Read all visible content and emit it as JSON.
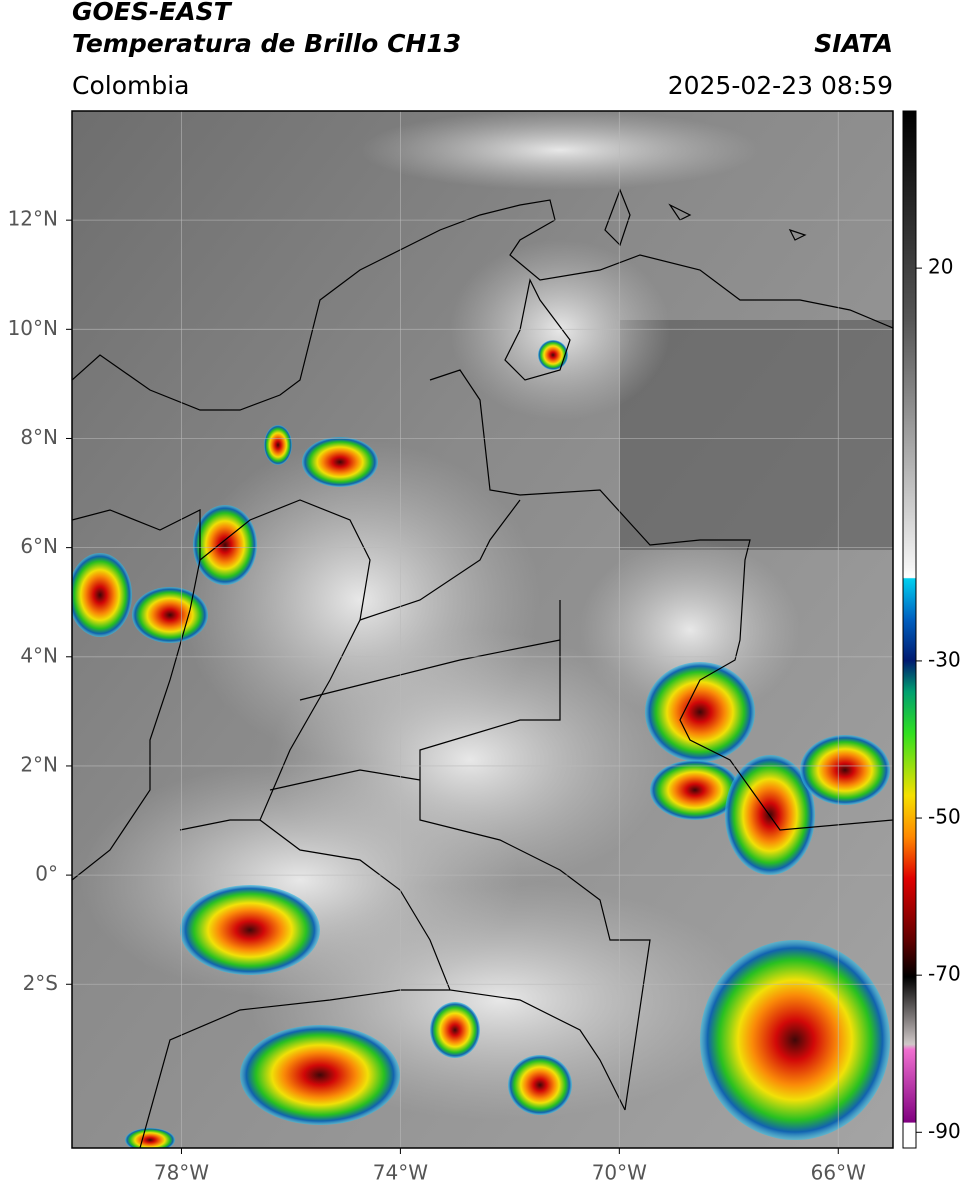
{
  "header": {
    "title": "GOES-EAST",
    "subtitle": "Temperatura de Brillo CH13",
    "region": "Colombia",
    "source": "SIATA",
    "datetime": "2025-02-23 08:59"
  },
  "map": {
    "xlim": [
      -80,
      -65
    ],
    "ylim": [
      -5,
      14
    ],
    "xticks": [
      {
        "value": -78,
        "label": "78°W"
      },
      {
        "value": -74,
        "label": "74°W"
      },
      {
        "value": -70,
        "label": "70°W"
      },
      {
        "value": -66,
        "label": "66°W"
      }
    ],
    "yticks": [
      {
        "value": 12,
        "label": "12°N"
      },
      {
        "value": 10,
        "label": "10°N"
      },
      {
        "value": 8,
        "label": "8°N"
      },
      {
        "value": 6,
        "label": "6°N"
      },
      {
        "value": 4,
        "label": "4°N"
      },
      {
        "value": 2,
        "label": "2°N"
      },
      {
        "value": 0,
        "label": "0°"
      },
      {
        "value": -2,
        "label": "2°S"
      }
    ],
    "grid": true
  },
  "colorbar": {
    "lim": [
      -92,
      40
    ],
    "ticks": [
      20,
      -30,
      -50,
      -70,
      -90
    ]
  }
}
